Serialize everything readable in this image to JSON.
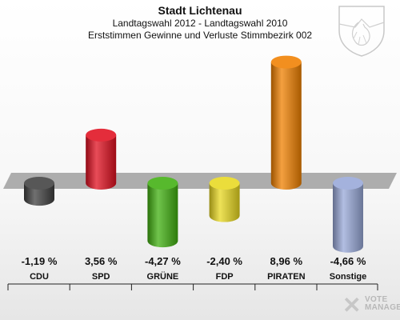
{
  "header": {
    "title": "Stadt Lichtenau",
    "subtitle": "Landtagswahl 2012 - Landtagswahl 2010",
    "subtitle2": "Erststimmen Gewinne und Verluste Stimmbezirk 002"
  },
  "brand": {
    "line1": "VOTE",
    "line2": "MANAGER",
    "mark": "✕"
  },
  "colors": {
    "CDU": "#404040",
    "SPD": "#e01020",
    "GRÜNE": "#40b010",
    "FDP": "#e8d820",
    "PIRATEN": "#f08000",
    "Sonstige": "#98a8d8",
    "zero_band": "#a0a0a0"
  },
  "chart_data": {
    "type": "bar",
    "title": "Stadt Lichtenau",
    "subtitle": "Landtagswahl 2012 - Landtagswahl 2010 / Erststimmen Gewinne und Verluste Stimmbezirk 002",
    "categories": [
      "CDU",
      "SPD",
      "GRÜNE",
      "FDP",
      "PIRATEN",
      "Sonstige"
    ],
    "values": [
      -1.19,
      3.56,
      -4.27,
      -2.4,
      8.96,
      -4.66
    ],
    "labels": [
      "-1,19 %",
      "3,56 %",
      "-4,27 %",
      "-2,40 %",
      "8,96 %",
      "-4,66 %"
    ],
    "ylim": [
      -5,
      9
    ],
    "grid": false
  }
}
